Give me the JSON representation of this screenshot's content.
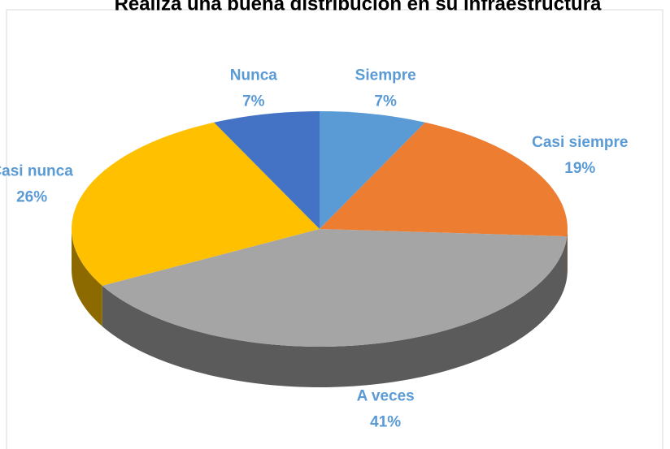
{
  "chart_data": {
    "type": "pie",
    "title": "Realiza una buena distribución en su infraestructura",
    "categories": [
      "Siempre",
      "Casi siempre",
      "A veces",
      "Casi nunca",
      "Nunca"
    ],
    "values": [
      7,
      19,
      41,
      26,
      7
    ],
    "value_labels": [
      "7%",
      "19%",
      "41%",
      "26%",
      "7%"
    ],
    "colors": [
      "#5b9bd5",
      "#ed7d31",
      "#a5a5a5",
      "#ffc000",
      "#4472c4"
    ]
  }
}
